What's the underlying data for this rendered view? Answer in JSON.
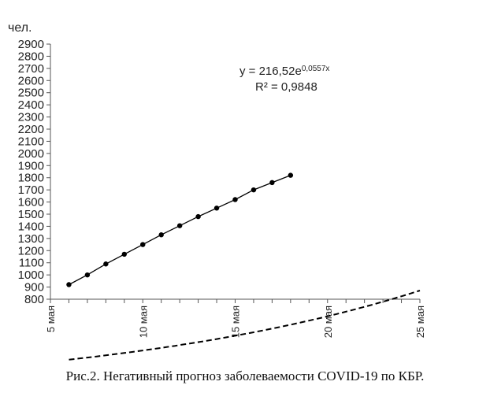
{
  "chart_data": {
    "type": "line",
    "unit_label": "чел.",
    "x_axis": {
      "ticks": [
        5,
        10,
        15,
        20,
        25
      ],
      "tick_labels": [
        "5 мая",
        "10 мая",
        "15 мая",
        "20 мая",
        "25 мая"
      ],
      "range": [
        5,
        25
      ]
    },
    "y_axis": {
      "range": [
        800,
        2900
      ],
      "step": 100,
      "tick_labels": [
        "800",
        "900",
        "1000",
        "1100",
        "1200",
        "1300",
        "1400",
        "1500",
        "1600",
        "1700",
        "1800",
        "1900",
        "2000",
        "2100",
        "2200",
        "2300",
        "2400",
        "2500",
        "2600",
        "2700",
        "2800",
        "2900"
      ]
    },
    "series": [
      {
        "style": "solid-markers",
        "x": [
          6,
          7,
          8,
          9,
          10,
          11,
          12,
          13,
          14,
          15,
          16,
          17,
          18
        ],
        "y": [
          920,
          1000,
          1090,
          1170,
          1250,
          1330,
          1405,
          1480,
          1550,
          1620,
          1700,
          1760,
          1820
        ]
      }
    ],
    "trendline": {
      "type": "exponential",
      "a": 216.52,
      "b": 0.0557,
      "x_offset_day": 0,
      "x_range": [
        6,
        25
      ],
      "equation_base": "y = 216,52e",
      "equation_exp": "0,0557x",
      "r_squared_label": "R² = 0,9848"
    }
  },
  "caption": "Рис.2. Негативный прогноз заболеваемости COVID-19 по КБР."
}
